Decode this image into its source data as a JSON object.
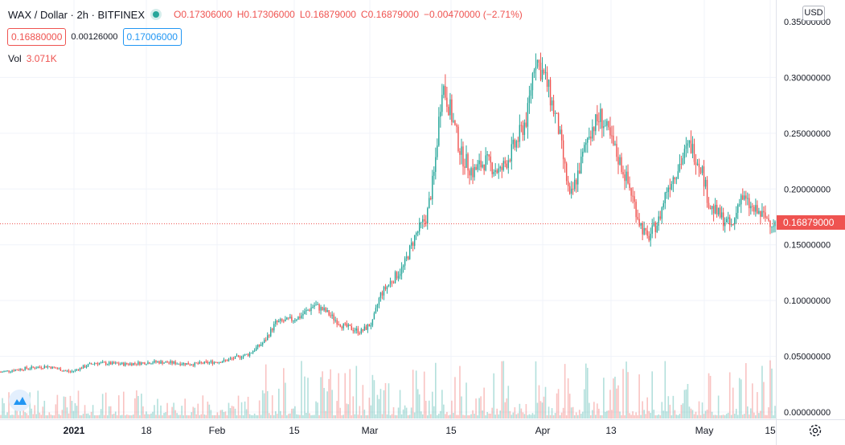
{
  "header": {
    "symbol": "WAX / Dollar",
    "interval": "2h",
    "exchange": "BITFINEX",
    "open": "O0.17306000",
    "high": "H0.17306000",
    "low": "L0.16879000",
    "close": "C0.16879000",
    "change": "−0.00470000 (−2.71%)"
  },
  "trade": {
    "sell": "0.16880000",
    "spread": "0.00126000",
    "buy": "0.17006000"
  },
  "volume": {
    "label": "Vol",
    "value": "3.071K"
  },
  "currency": "USD",
  "last_price": "0.16879000",
  "colors": {
    "up": "#26a69a",
    "down": "#ef5350"
  },
  "chart_data": {
    "type": "candlestick",
    "y_range": [
      0,
      0.35
    ],
    "y_ticks": [
      "0.30000000",
      "0.25000000",
      "0.20000000",
      "0.15000000",
      "0.10000000",
      "0.05000000",
      "0.00000000"
    ],
    "y_tick_values": [
      0.3,
      0.25,
      0.2,
      0.15,
      0.1,
      0.05,
      0.0
    ],
    "top_tick_label": "0.35000000",
    "x_ticks": [
      "2021",
      "18",
      "Feb",
      "15",
      "Mar",
      "15",
      "Apr",
      "13",
      "May",
      "15"
    ],
    "last_price_value": 0.16879,
    "price_path": [
      [
        0,
        0.036
      ],
      [
        0.03,
        0.039
      ],
      [
        0.06,
        0.041
      ],
      [
        0.09,
        0.036
      ],
      [
        0.12,
        0.044
      ],
      [
        0.16,
        0.043
      ],
      [
        0.2,
        0.045
      ],
      [
        0.25,
        0.043
      ],
      [
        0.29,
        0.046
      ],
      [
        0.32,
        0.052
      ],
      [
        0.34,
        0.063
      ],
      [
        0.355,
        0.08
      ],
      [
        0.37,
        0.082
      ],
      [
        0.385,
        0.085
      ],
      [
        0.405,
        0.096
      ],
      [
        0.42,
        0.09
      ],
      [
        0.44,
        0.078
      ],
      [
        0.465,
        0.072
      ],
      [
        0.48,
        0.08
      ],
      [
        0.49,
        0.105
      ],
      [
        0.505,
        0.118
      ],
      [
        0.52,
        0.13
      ],
      [
        0.535,
        0.158
      ],
      [
        0.55,
        0.175
      ],
      [
        0.56,
        0.215
      ],
      [
        0.57,
        0.295
      ],
      [
        0.58,
        0.272
      ],
      [
        0.595,
        0.23
      ],
      [
        0.61,
        0.215
      ],
      [
        0.625,
        0.225
      ],
      [
        0.645,
        0.215
      ],
      [
        0.665,
        0.24
      ],
      [
        0.68,
        0.265
      ],
      [
        0.69,
        0.32
      ],
      [
        0.705,
        0.295
      ],
      [
        0.72,
        0.255
      ],
      [
        0.735,
        0.19
      ],
      [
        0.75,
        0.225
      ],
      [
        0.76,
        0.252
      ],
      [
        0.775,
        0.265
      ],
      [
        0.79,
        0.24
      ],
      [
        0.805,
        0.215
      ],
      [
        0.815,
        0.195
      ],
      [
        0.825,
        0.17
      ],
      [
        0.835,
        0.155
      ],
      [
        0.85,
        0.172
      ],
      [
        0.86,
        0.2
      ],
      [
        0.875,
        0.22
      ],
      [
        0.89,
        0.24
      ],
      [
        0.905,
        0.22
      ],
      [
        0.915,
        0.185
      ],
      [
        0.93,
        0.175
      ],
      [
        0.945,
        0.165
      ],
      [
        0.955,
        0.195
      ],
      [
        0.97,
        0.182
      ],
      [
        1.0,
        0.16879
      ]
    ]
  }
}
